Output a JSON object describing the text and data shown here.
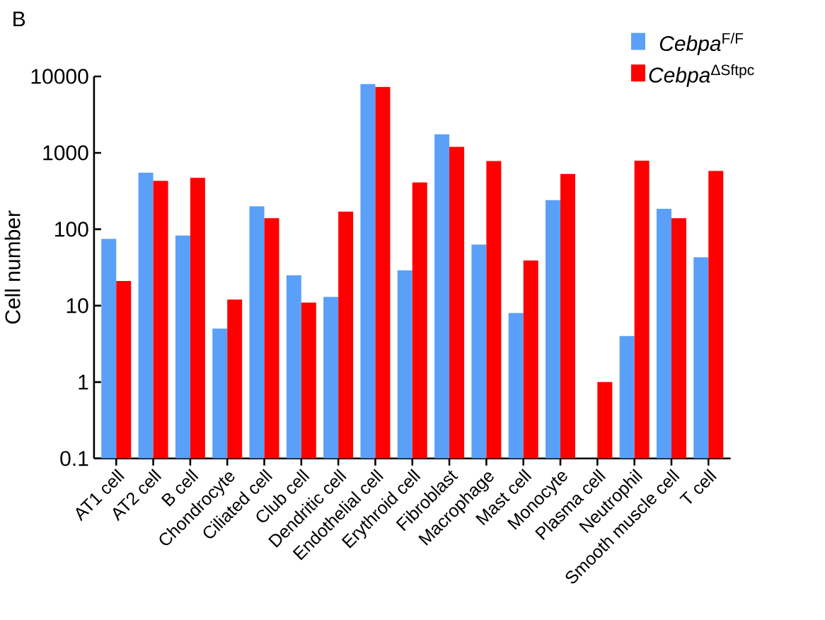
{
  "chart_data": {
    "type": "bar",
    "ylabel": "Cell number",
    "annotations": [
      "B"
    ],
    "categories": [
      "AT1 cell",
      "AT2 cell",
      "B cell",
      "Chondrocyte",
      "Ciliated cell",
      "Club cell",
      "Dendritic cell",
      "Endothelial cell",
      "Erythroid cell",
      "Fibroblast",
      "Macrophage",
      "Mast cell",
      "Monocyte",
      "Plasma cell",
      "Neutrophil",
      "Smooth muscle cell",
      "T cell"
    ],
    "series": [
      {
        "name": "*Cebpa*$^{F/F}$",
        "color": "#5aa0f8",
        "values": [
          75,
          550,
          83,
          5,
          200,
          25,
          13,
          8000,
          29,
          1750,
          63,
          8,
          240,
          null,
          4,
          185,
          43
        ]
      },
      {
        "name": "*Cebpa*$^{ΔSftpc}$",
        "color": "#ff0000",
        "values": [
          21,
          430,
          470,
          12,
          140,
          11,
          170,
          7300,
          410,
          1200,
          780,
          39,
          530,
          1,
          790,
          140,
          580
        ]
      }
    ],
    "log": true,
    "ylim": [
      0.1,
      10000
    ],
    "yticks": [
      0.1,
      1,
      10,
      100,
      1000,
      10000
    ],
    "grid": false,
    "legend": "top right"
  }
}
